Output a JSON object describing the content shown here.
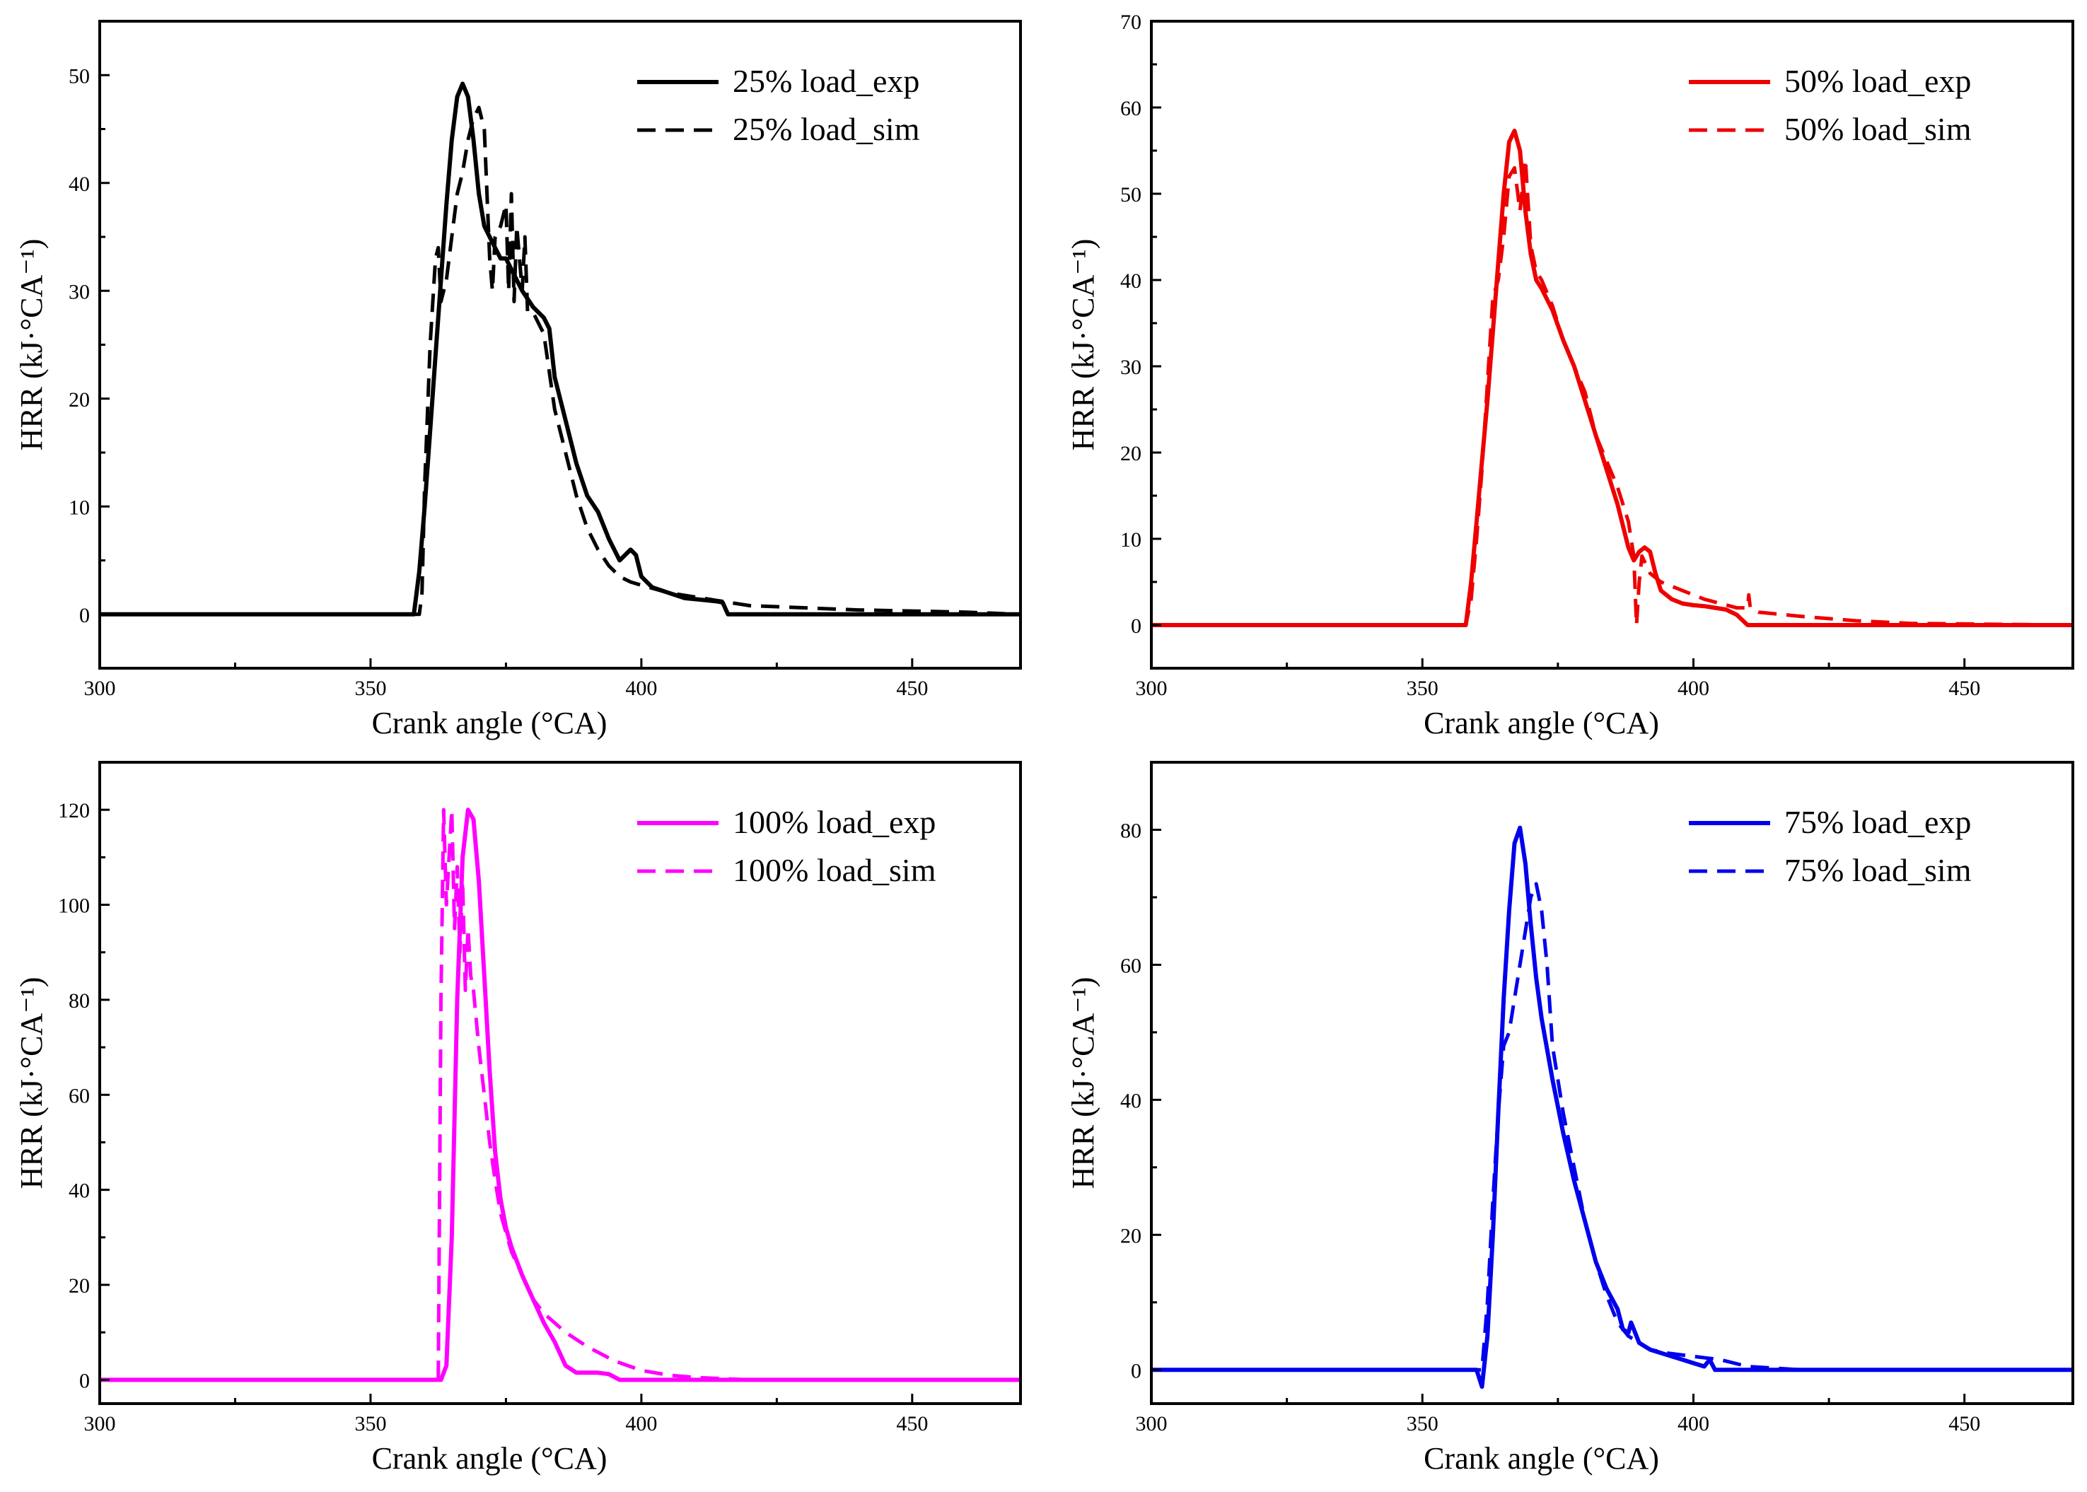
{
  "chart_data": [
    {
      "type": "line",
      "panel": "top-left",
      "title": "",
      "xlabel": "Crank angle (°CA)",
      "ylabel": "HRR (kJ·°CA⁻¹)",
      "xlim": [
        300,
        470
      ],
      "ylim": [
        -5,
        55
      ],
      "xticks": [
        300,
        350,
        400,
        450
      ],
      "yticks": [
        0,
        10,
        20,
        30,
        40,
        50
      ],
      "xtick_labels": [
        "300",
        "350",
        "400",
        "450"
      ],
      "ytick_labels": [
        "0",
        "10",
        "20",
        "30",
        "40",
        "50"
      ],
      "color": "#000000",
      "legend_position": "top-right",
      "series": [
        {
          "name": "25% load_exp",
          "style": "solid",
          "x": [
            300,
            350,
            358,
            359,
            360,
            361,
            362,
            363,
            364,
            365,
            366,
            367,
            368,
            369,
            370,
            371,
            372,
            373,
            374,
            375,
            376,
            377,
            378,
            380,
            382,
            383,
            384,
            386,
            388,
            390,
            392,
            394,
            396,
            398,
            399,
            400,
            402,
            405,
            408,
            410,
            412,
            414,
            415,
            416,
            420,
            440,
            470
          ],
          "y": [
            0,
            0,
            0,
            4,
            10,
            17,
            24,
            31,
            38,
            44,
            48,
            49.2,
            48,
            44,
            39,
            36,
            35,
            34,
            33,
            33,
            32,
            31,
            30,
            28.5,
            27.5,
            26.5,
            22,
            18,
            14,
            11,
            9.5,
            7,
            5,
            6,
            5.5,
            3.5,
            2.5,
            2,
            1.5,
            1.4,
            1.3,
            1.2,
            1.1,
            0,
            0,
            0,
            0
          ]
        },
        {
          "name": "25% load_sim",
          "style": "dashed",
          "x": [
            300,
            350,
            359,
            359.5,
            360,
            361,
            362,
            362.5,
            363,
            364,
            365,
            366,
            367,
            368,
            369,
            370,
            371,
            372,
            372.5,
            373,
            374,
            375,
            375.5,
            376,
            376.5,
            377,
            378,
            378.5,
            379,
            380,
            382,
            384,
            386,
            388,
            390,
            392,
            394,
            396,
            398,
            400,
            405,
            410,
            415,
            420,
            440,
            460,
            470
          ],
          "y": [
            0,
            0,
            0,
            2,
            12,
            25,
            33,
            34,
            29,
            31,
            35,
            39,
            41,
            44,
            46,
            47,
            45,
            33,
            30,
            35,
            36,
            38,
            30,
            39,
            29,
            36,
            30,
            35,
            28,
            28,
            26,
            19,
            15,
            11,
            8,
            6,
            4.5,
            3.5,
            3,
            2.7,
            2,
            1.6,
            1.2,
            0.8,
            0.4,
            0.2,
            0
          ]
        }
      ]
    },
    {
      "type": "line",
      "panel": "top-right",
      "title": "",
      "xlabel": "Crank angle (°CA)",
      "ylabel": "HRR (kJ·°CA⁻¹)",
      "xlim": [
        300,
        470
      ],
      "ylim": [
        -5,
        70
      ],
      "xticks": [
        300,
        350,
        400,
        450
      ],
      "yticks": [
        0,
        10,
        20,
        30,
        40,
        50,
        60,
        70
      ],
      "xtick_labels": [
        "300",
        "350",
        "400",
        "450"
      ],
      "ytick_labels": [
        "0",
        "10",
        "20",
        "30",
        "40",
        "50",
        "60",
        "70"
      ],
      "color": "#ee0000",
      "legend_position": "top-right",
      "series": [
        {
          "name": "50% load_exp",
          "style": "solid",
          "x": [
            300,
            350,
            357,
            358,
            359,
            360,
            361,
            362,
            363,
            364,
            365,
            366,
            367,
            368,
            369,
            370,
            371,
            372,
            374,
            376,
            378,
            380,
            382,
            384,
            386,
            388,
            389,
            390,
            391,
            392,
            393,
            394,
            396,
            398,
            400,
            402,
            404,
            406,
            408,
            410,
            412,
            420,
            440,
            470
          ],
          "y": [
            0,
            0,
            0,
            0,
            5,
            12,
            19,
            26,
            34,
            42,
            50,
            56,
            57.3,
            55,
            48,
            43,
            40,
            39,
            36.5,
            33,
            30,
            26,
            22,
            18,
            14,
            9,
            7.5,
            8.5,
            9,
            8.5,
            6,
            4,
            3,
            2.5,
            2.3,
            2.2,
            2,
            1.8,
            1.2,
            0,
            0,
            0,
            0,
            0
          ]
        },
        {
          "name": "50% load_sim",
          "style": "dashed",
          "x": [
            300,
            350,
            358,
            359,
            360,
            361,
            362,
            363,
            364,
            365,
            366,
            367,
            368,
            369,
            370,
            371,
            372,
            374,
            376,
            378,
            380,
            382,
            384,
            386,
            388,
            389,
            389.5,
            390,
            390.5,
            392,
            394,
            396,
            398,
            400,
            402,
            405,
            408,
            410,
            410.2,
            410.5,
            412,
            420,
            430,
            440,
            470
          ],
          "y": [
            0,
            0,
            0,
            3,
            10,
            18,
            28,
            38,
            40,
            45,
            52,
            53,
            48,
            54,
            44,
            41,
            40,
            37,
            33,
            30,
            27,
            22,
            19,
            16,
            12,
            8,
            0,
            5,
            8,
            6,
            5,
            4.5,
            4,
            3.5,
            3,
            2.5,
            2,
            2,
            3.5,
            2,
            1.5,
            1,
            0.5,
            0.2,
            0
          ]
        }
      ]
    },
    {
      "type": "line",
      "panel": "bottom-left",
      "title": "",
      "xlabel": "Crank angle (°CA)",
      "ylabel": "HRR (kJ·°CA⁻¹)",
      "xlim": [
        300,
        470
      ],
      "ylim": [
        -5,
        130
      ],
      "xticks": [
        300,
        350,
        400,
        450
      ],
      "yticks": [
        0,
        20,
        40,
        60,
        80,
        100,
        120
      ],
      "xtick_labels": [
        "300",
        "350",
        "400",
        "450"
      ],
      "ytick_labels": [
        "0",
        "20",
        "40",
        "60",
        "80",
        "100",
        "120"
      ],
      "color": "#ff00ff",
      "legend_position": "top-right",
      "series": [
        {
          "name": "100% load_exp",
          "style": "solid",
          "x": [
            300,
            350,
            363,
            364,
            365,
            366,
            367,
            368,
            369,
            370,
            371,
            372,
            373,
            374,
            375,
            376,
            378,
            380,
            382,
            384,
            386,
            388,
            390,
            392,
            394,
            396,
            398,
            400,
            410,
            470
          ],
          "y": [
            0,
            0,
            0,
            3,
            30,
            80,
            110,
            120,
            118,
            105,
            85,
            65,
            48,
            38,
            32,
            28,
            22,
            17,
            12,
            8,
            3,
            1.5,
            1.5,
            1.5,
            1.2,
            0,
            0,
            0,
            0,
            0
          ]
        },
        {
          "name": "100% load_sim",
          "style": "dashed",
          "x": [
            300,
            350,
            362.5,
            363,
            363.5,
            364,
            365,
            365.5,
            366,
            366.5,
            367,
            367.5,
            368,
            368.5,
            369,
            370,
            371,
            372,
            373,
            374,
            376,
            378,
            380,
            382,
            384,
            386,
            390,
            395,
            400,
            405,
            410,
            420,
            470
          ],
          "y": [
            0,
            0,
            0,
            80,
            120,
            100,
            120,
            95,
            108,
            90,
            105,
            82,
            95,
            85,
            82,
            70,
            60,
            50,
            42,
            35,
            27,
            22,
            17,
            14,
            12,
            10,
            7,
            4,
            2,
            1,
            0.5,
            0,
            0
          ]
        }
      ]
    },
    {
      "type": "line",
      "panel": "bottom-right",
      "title": "",
      "xlabel": "Crank angle (°CA)",
      "ylabel": "HRR (kJ·°CA⁻¹)",
      "xlim": [
        300,
        470
      ],
      "ylim": [
        -5,
        90
      ],
      "xticks": [
        300,
        350,
        400,
        450
      ],
      "yticks": [
        0,
        20,
        40,
        60,
        80
      ],
      "xtick_labels": [
        "300",
        "350",
        "400",
        "450"
      ],
      "ytick_labels": [
        "0",
        "20",
        "40",
        "60",
        "80"
      ],
      "color": "#0000ee",
      "legend_position": "top-right",
      "series": [
        {
          "name": "75% load_exp",
          "style": "solid",
          "x": [
            300,
            350,
            360,
            361,
            362,
            363,
            364,
            365,
            366,
            367,
            368,
            369,
            370,
            371,
            372,
            374,
            376,
            378,
            380,
            382,
            384,
            386,
            387,
            388,
            388.5,
            389,
            390,
            392,
            394,
            396,
            398,
            400,
            402,
            403,
            404,
            405,
            410,
            470
          ],
          "y": [
            0,
            0,
            0,
            -2.5,
            5,
            20,
            38,
            55,
            68,
            78,
            80.3,
            75,
            66,
            58,
            52,
            43,
            35,
            28,
            22,
            16,
            12,
            9,
            6,
            5.5,
            7,
            6,
            4,
            3,
            2.5,
            2,
            1.5,
            1,
            0.5,
            1.5,
            0,
            0,
            0,
            0
          ]
        },
        {
          "name": "75% load_sim",
          "style": "dashed",
          "x": [
            300,
            350,
            360,
            361,
            362,
            363,
            364,
            365,
            366,
            367,
            368,
            369,
            370,
            371,
            372,
            373,
            374,
            376,
            378,
            380,
            382,
            384,
            386,
            388,
            390,
            392,
            395,
            400,
            405,
            410,
            420,
            470
          ],
          "y": [
            0,
            0,
            0,
            0,
            10,
            25,
            38,
            48,
            50,
            55,
            60,
            65,
            70,
            72,
            68,
            60,
            48,
            38,
            30,
            22,
            16,
            11,
            7,
            5,
            4,
            3,
            2.5,
            2,
            1.5,
            0.5,
            0,
            0
          ]
        }
      ]
    }
  ]
}
